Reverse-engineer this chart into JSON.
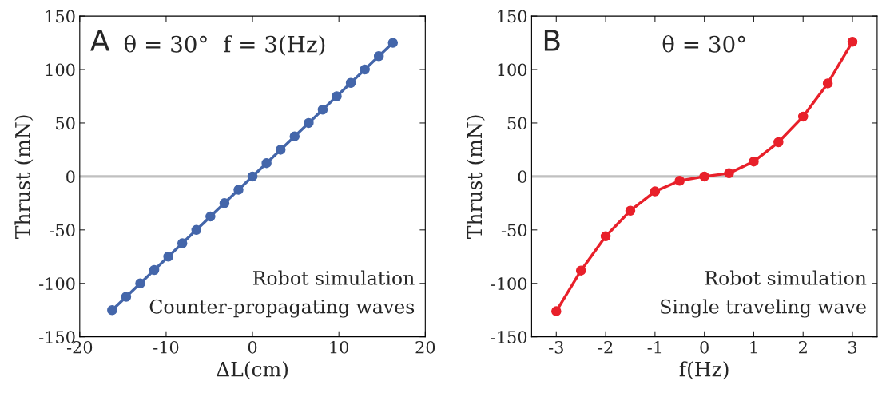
{
  "chart_data": [
    {
      "type": "line",
      "xlabel": "ΔL(cm)",
      "ylabel": "Thrust (mN)",
      "marker": "circle",
      "grid": false,
      "annotations": [
        "A",
        "θ = 30°  f = 3(Hz)",
        "Robot simulation",
        "Counter-propagating waves"
      ],
      "xlim": [
        -20,
        20
      ],
      "xticks": [
        -20,
        -10,
        0,
        10,
        20
      ],
      "ylim": [
        -150,
        150
      ],
      "yticks": [
        -150,
        -100,
        -50,
        0,
        50,
        100,
        150
      ],
      "ref_lines": [
        {
          "axis": "y",
          "value": 0,
          "color": "#c0c0c0"
        }
      ],
      "series": [
        {
          "color": "#4466aa",
          "x": [
            -16.25,
            -14.625,
            -13,
            -11.375,
            -9.75,
            -8.125,
            -6.5,
            -4.875,
            -3.25,
            -1.625,
            0,
            1.625,
            3.25,
            4.875,
            6.5,
            8.125,
            9.75,
            11.375,
            13,
            14.625,
            16.25
          ],
          "values": [
            -125,
            -112.5,
            -100,
            -87.5,
            -75,
            -62.5,
            -50,
            -37.5,
            -25,
            -12.5,
            0,
            12.5,
            25,
            37.5,
            50,
            62.5,
            75,
            87.5,
            100,
            112.5,
            125
          ]
        }
      ]
    },
    {
      "type": "line",
      "xlabel": "f(Hz)",
      "ylabel": "Thrust (mN)",
      "marker": "circle",
      "grid": false,
      "annotations": [
        "B",
        "θ = 30°",
        "Robot simulation",
        "Single traveling wave"
      ],
      "xlim": [
        -3.5,
        3.5
      ],
      "xticks": [
        -3,
        -2,
        -1,
        0,
        1,
        2,
        3
      ],
      "ylim": [
        -150,
        150
      ],
      "yticks": [
        -150,
        -100,
        -50,
        0,
        50,
        100,
        150
      ],
      "ref_lines": [
        {
          "axis": "y",
          "value": 0,
          "color": "#c0c0c0"
        }
      ],
      "series": [
        {
          "color": "#e8202a",
          "x": [
            -3,
            -2.5,
            -2,
            -1.5,
            -1,
            -0.5,
            0,
            0.5,
            1,
            1.5,
            2,
            2.5,
            3
          ],
          "values": [
            -126,
            -88,
            -56,
            -32,
            -14,
            -4,
            0,
            3,
            14,
            32,
            56,
            87,
            126
          ]
        }
      ]
    }
  ]
}
